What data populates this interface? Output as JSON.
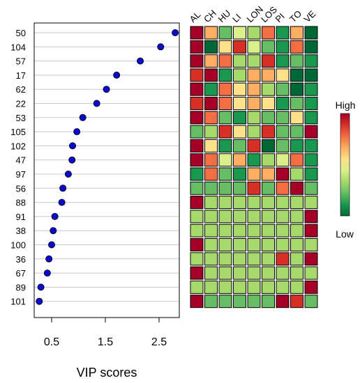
{
  "chart_data": [
    {
      "type": "scatter",
      "variant": "dot-plot",
      "xlabel": "VIP scores",
      "ylabel": "",
      "xticks": [
        0.5,
        1.5,
        2.5
      ],
      "xtick_labels": [
        "0.5",
        "1.5",
        "2.5"
      ],
      "xlim": [
        0.2,
        2.85
      ],
      "grid": "horizontal",
      "marker_color": "#0a0acd",
      "categories": [
        "50",
        "104",
        "57",
        "17",
        "62",
        "22",
        "53",
        "105",
        "102",
        "47",
        "97",
        "56",
        "88",
        "91",
        "38",
        "100",
        "36",
        "67",
        "89",
        "101"
      ],
      "values": [
        2.8,
        2.53,
        2.15,
        1.71,
        1.52,
        1.34,
        1.08,
        0.97,
        0.89,
        0.88,
        0.81,
        0.71,
        0.69,
        0.56,
        0.53,
        0.5,
        0.45,
        0.42,
        0.3,
        0.27
      ]
    },
    {
      "type": "heatmap",
      "columns": [
        "AL",
        "CH",
        "HU",
        "LI",
        "LON",
        "LOS",
        "PI",
        "TO",
        "VE"
      ],
      "rows": [
        "50",
        "104",
        "57",
        "17",
        "62",
        "22",
        "53",
        "105",
        "102",
        "47",
        "97",
        "56",
        "88",
        "91",
        "38",
        "100",
        "36",
        "67",
        "89",
        "101"
      ],
      "legend": {
        "high_label": "High",
        "low_label": "Low",
        "placement": "right"
      },
      "colorscale": [
        "#006837",
        "#1a9850",
        "#66bd63",
        "#a6d96a",
        "#d9ef8b",
        "#fee08b",
        "#fdae61",
        "#f46d43",
        "#d73027",
        "#a50026"
      ],
      "scale": "relative level, 0 = Low, 9 = High",
      "levels": [
        [
          9,
          6,
          2,
          4,
          3,
          7,
          1,
          6,
          0
        ],
        [
          9,
          0,
          5,
          8,
          4,
          2,
          1,
          7,
          0
        ],
        [
          9,
          6,
          7,
          3,
          3,
          8,
          1,
          2,
          1
        ],
        [
          8,
          9,
          1,
          3,
          6,
          6,
          5,
          0,
          0
        ],
        [
          9,
          1,
          7,
          5,
          6,
          3,
          2,
          0,
          1
        ],
        [
          8,
          9,
          7,
          5,
          6,
          5,
          1,
          2,
          1
        ],
        [
          9,
          7,
          2,
          1,
          3,
          2,
          2,
          5,
          1
        ],
        [
          2,
          3,
          8,
          5,
          3,
          8,
          2,
          2,
          9
        ],
        [
          9,
          5,
          1,
          2,
          8,
          0,
          2,
          1,
          1
        ],
        [
          9,
          7,
          4,
          6,
          1,
          3,
          4,
          7,
          1
        ],
        [
          1,
          7,
          2,
          1,
          6,
          6,
          9,
          3,
          1
        ],
        [
          2,
          2,
          2,
          2,
          8,
          2,
          7,
          9,
          2
        ],
        [
          9,
          3,
          3,
          3,
          3,
          3,
          3,
          3,
          3
        ],
        [
          3,
          3,
          3,
          3,
          3,
          3,
          3,
          3,
          9
        ],
        [
          3,
          3,
          3,
          3,
          3,
          3,
          3,
          3,
          9
        ],
        [
          9,
          3,
          3,
          3,
          3,
          3,
          3,
          3,
          3
        ],
        [
          3,
          3,
          3,
          3,
          3,
          3,
          8,
          3,
          9
        ],
        [
          9,
          3,
          3,
          3,
          3,
          3,
          3,
          3,
          3
        ],
        [
          3,
          3,
          3,
          3,
          3,
          3,
          3,
          3,
          9
        ],
        [
          9,
          2,
          2,
          2,
          2,
          2,
          9,
          8,
          2
        ]
      ]
    }
  ]
}
